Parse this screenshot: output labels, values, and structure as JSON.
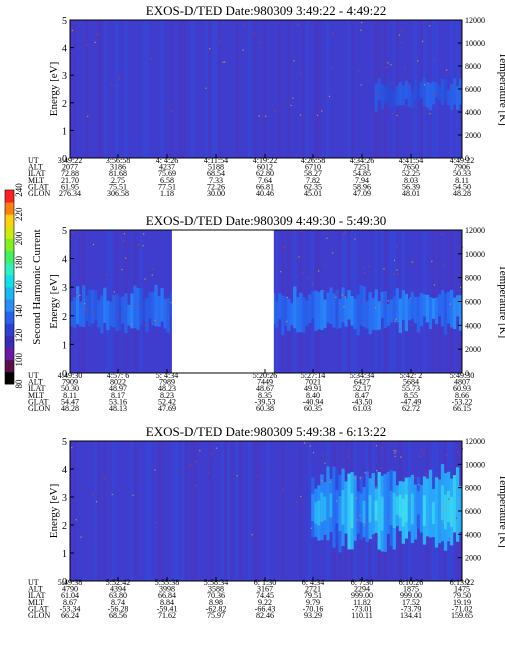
{
  "colorbar": {
    "label": "Second Harmonic Current",
    "ticks": [
      "80",
      "100",
      "120",
      "140",
      "160",
      "180",
      "200",
      "220",
      "240"
    ],
    "colors": [
      "#000000",
      "#5a0f4a",
      "#6a1aa0",
      "#3a2ab8",
      "#2d3fd0",
      "#2a60ee",
      "#2a8ef5",
      "#19b8f0",
      "#10e0e8",
      "#30f0c0",
      "#40f060",
      "#80f020",
      "#d0e810",
      "#ffd010",
      "#ff8010",
      "#ff2020"
    ]
  },
  "chart_data": [
    {
      "type": "heatmap",
      "title": "EXOS-D/TED   Date:980309  3:49:22 - 4:49:22",
      "ylabel": "Energy [eV]",
      "y2label": "Temperature [K]",
      "ylim": [
        0,
        5
      ],
      "y2lim": [
        0,
        12000
      ],
      "yticks": [
        "0",
        "1",
        "2",
        "3",
        "4",
        "5"
      ],
      "y2ticks": [
        "0",
        "2000",
        "4000",
        "6000",
        "8000",
        "10000",
        "12000"
      ],
      "gaps": [],
      "band": {
        "center_energy": 2.3,
        "width_energy": 0.9,
        "onset_fraction": 0.78,
        "intensity": 0.25
      },
      "ephemeris": {
        "labels": [
          "UT",
          "ALT",
          "ILAT",
          "MLT",
          "GLAT",
          "GLON"
        ],
        "columns": [
          [
            "3:49:22",
            "2077",
            "72.88",
            "21.70",
            "61.95",
            "276.34"
          ],
          [
            "3:56:58",
            "3186",
            "81.68",
            "2.75",
            "75.51",
            "306.58"
          ],
          [
            "4: 4:26",
            "4237",
            "75.69",
            "6.58",
            "77.51",
            "1.18"
          ],
          [
            "4:11:54",
            "5188",
            "68.54",
            "7.33",
            "72.26",
            "30.00"
          ],
          [
            "4:19:22",
            "6012",
            "62.80",
            "7.64",
            "66.81",
            "40.46"
          ],
          [
            "4:26:58",
            "6710",
            "58.27",
            "7.82",
            "62.35",
            "45.01"
          ],
          [
            "4:34:26",
            "7251",
            "54.85",
            "7.94",
            "58.96",
            "47.09"
          ],
          [
            "4:41:54",
            "7650",
            "52.25",
            "8.03",
            "56.39",
            "48.01"
          ],
          [
            "4:49:22",
            "7906",
            "50.33",
            "8.11",
            "54.50",
            "48.28"
          ]
        ]
      }
    },
    {
      "type": "heatmap",
      "title": "EXOS-D/TED   Date:980309  4:49:30 - 5:49:30",
      "ylabel": "Energy [eV]",
      "y2label": "Temperature [K]",
      "ylim": [
        0,
        5
      ],
      "y2lim": [
        0,
        12000
      ],
      "yticks": [
        "0",
        "1",
        "2",
        "3",
        "4",
        "5"
      ],
      "y2ticks": [
        "0",
        "2000",
        "4000",
        "6000",
        "8000",
        "10000",
        "12000"
      ],
      "gaps": [
        [
          0.26,
          0.52
        ]
      ],
      "band": {
        "center_energy": 2.2,
        "width_energy": 1.3,
        "onset_fraction": 0.0,
        "intensity": 0.45
      },
      "ephemeris": {
        "labels": [
          "UT",
          "ALT",
          "ILAT",
          "MLT",
          "GLAT",
          "GLON"
        ],
        "columns": [
          [
            "4:49:30",
            "7909",
            "50.30",
            "8.11",
            "54.47",
            "48.28"
          ],
          [
            "4:57: 6",
            "8022",
            "48.97",
            "8.17",
            "53.16",
            "48.13"
          ],
          [
            "5: 4:34",
            "7989",
            "48.23",
            "8.23",
            "52.42",
            "47.69"
          ],
          [
            "",
            "",
            "",
            "",
            "",
            ""
          ],
          [
            "5:20:26",
            "7449",
            "48.67",
            "8.35",
            "-39.53",
            "60.38"
          ],
          [
            "5:27:14",
            "7021",
            "49.91",
            "8.40",
            "-40.94",
            "60.35"
          ],
          [
            "5:34:34",
            "6427",
            "52.17",
            "8.47",
            "-43.50",
            "61.03"
          ],
          [
            "5:42: 2",
            "5684",
            "55.73",
            "8.55",
            "-47.49",
            "62.72"
          ],
          [
            "5:49:30",
            "4807",
            "60.93",
            "8.66",
            "-53.22",
            "66.15"
          ]
        ]
      }
    },
    {
      "type": "heatmap",
      "title": "EXOS-D/TED   Date:980309  5:49:38 - 6:13:22",
      "ylabel": "Energy [eV]",
      "y2label": "Temperature [K]",
      "ylim": [
        0,
        5
      ],
      "y2lim": [
        0,
        12000
      ],
      "yticks": [
        "0",
        "1",
        "2",
        "3",
        "4",
        "5"
      ],
      "y2ticks": [
        "0",
        "2000",
        "4000",
        "6000",
        "8000",
        "10000",
        "12000"
      ],
      "gaps": [],
      "band": {
        "center_energy": 2.6,
        "width_energy": 2.6,
        "onset_fraction": 0.62,
        "intensity": 0.85
      },
      "ephemeris": {
        "labels": [
          "UT",
          "ALT",
          "ILAT",
          "MLT",
          "GLAT",
          "GLON"
        ],
        "columns": [
          [
            "5:49:38",
            "4790",
            "61.04",
            "8.67",
            "-53.34",
            "66.24"
          ],
          [
            "5:52:42",
            "4394",
            "63.80",
            "8.74",
            "-56.28",
            "68.56"
          ],
          [
            "5:55:38",
            "3998",
            "66.84",
            "8.84",
            "-59.41",
            "71.62"
          ],
          [
            "5:58:34",
            "3588",
            "70.36",
            "8.98",
            "-62.82",
            "75.97"
          ],
          [
            "6: 1:30",
            "3167",
            "74.45",
            "9.22",
            "-66.43",
            "82.46"
          ],
          [
            "6: 4:34",
            "2721",
            "79.51",
            "9.79",
            "-70.16",
            "93.29"
          ],
          [
            "6: 7:30",
            "2294",
            "999.00",
            "11.82",
            "-73.01",
            "110.11"
          ],
          [
            "6:10:26",
            "1875",
            "999.00",
            "17.52",
            "-73.79",
            "134.41"
          ],
          [
            "6:13:22",
            "1475",
            "79.50",
            "19.19",
            "-71.02",
            "159.65"
          ]
        ]
      }
    }
  ]
}
